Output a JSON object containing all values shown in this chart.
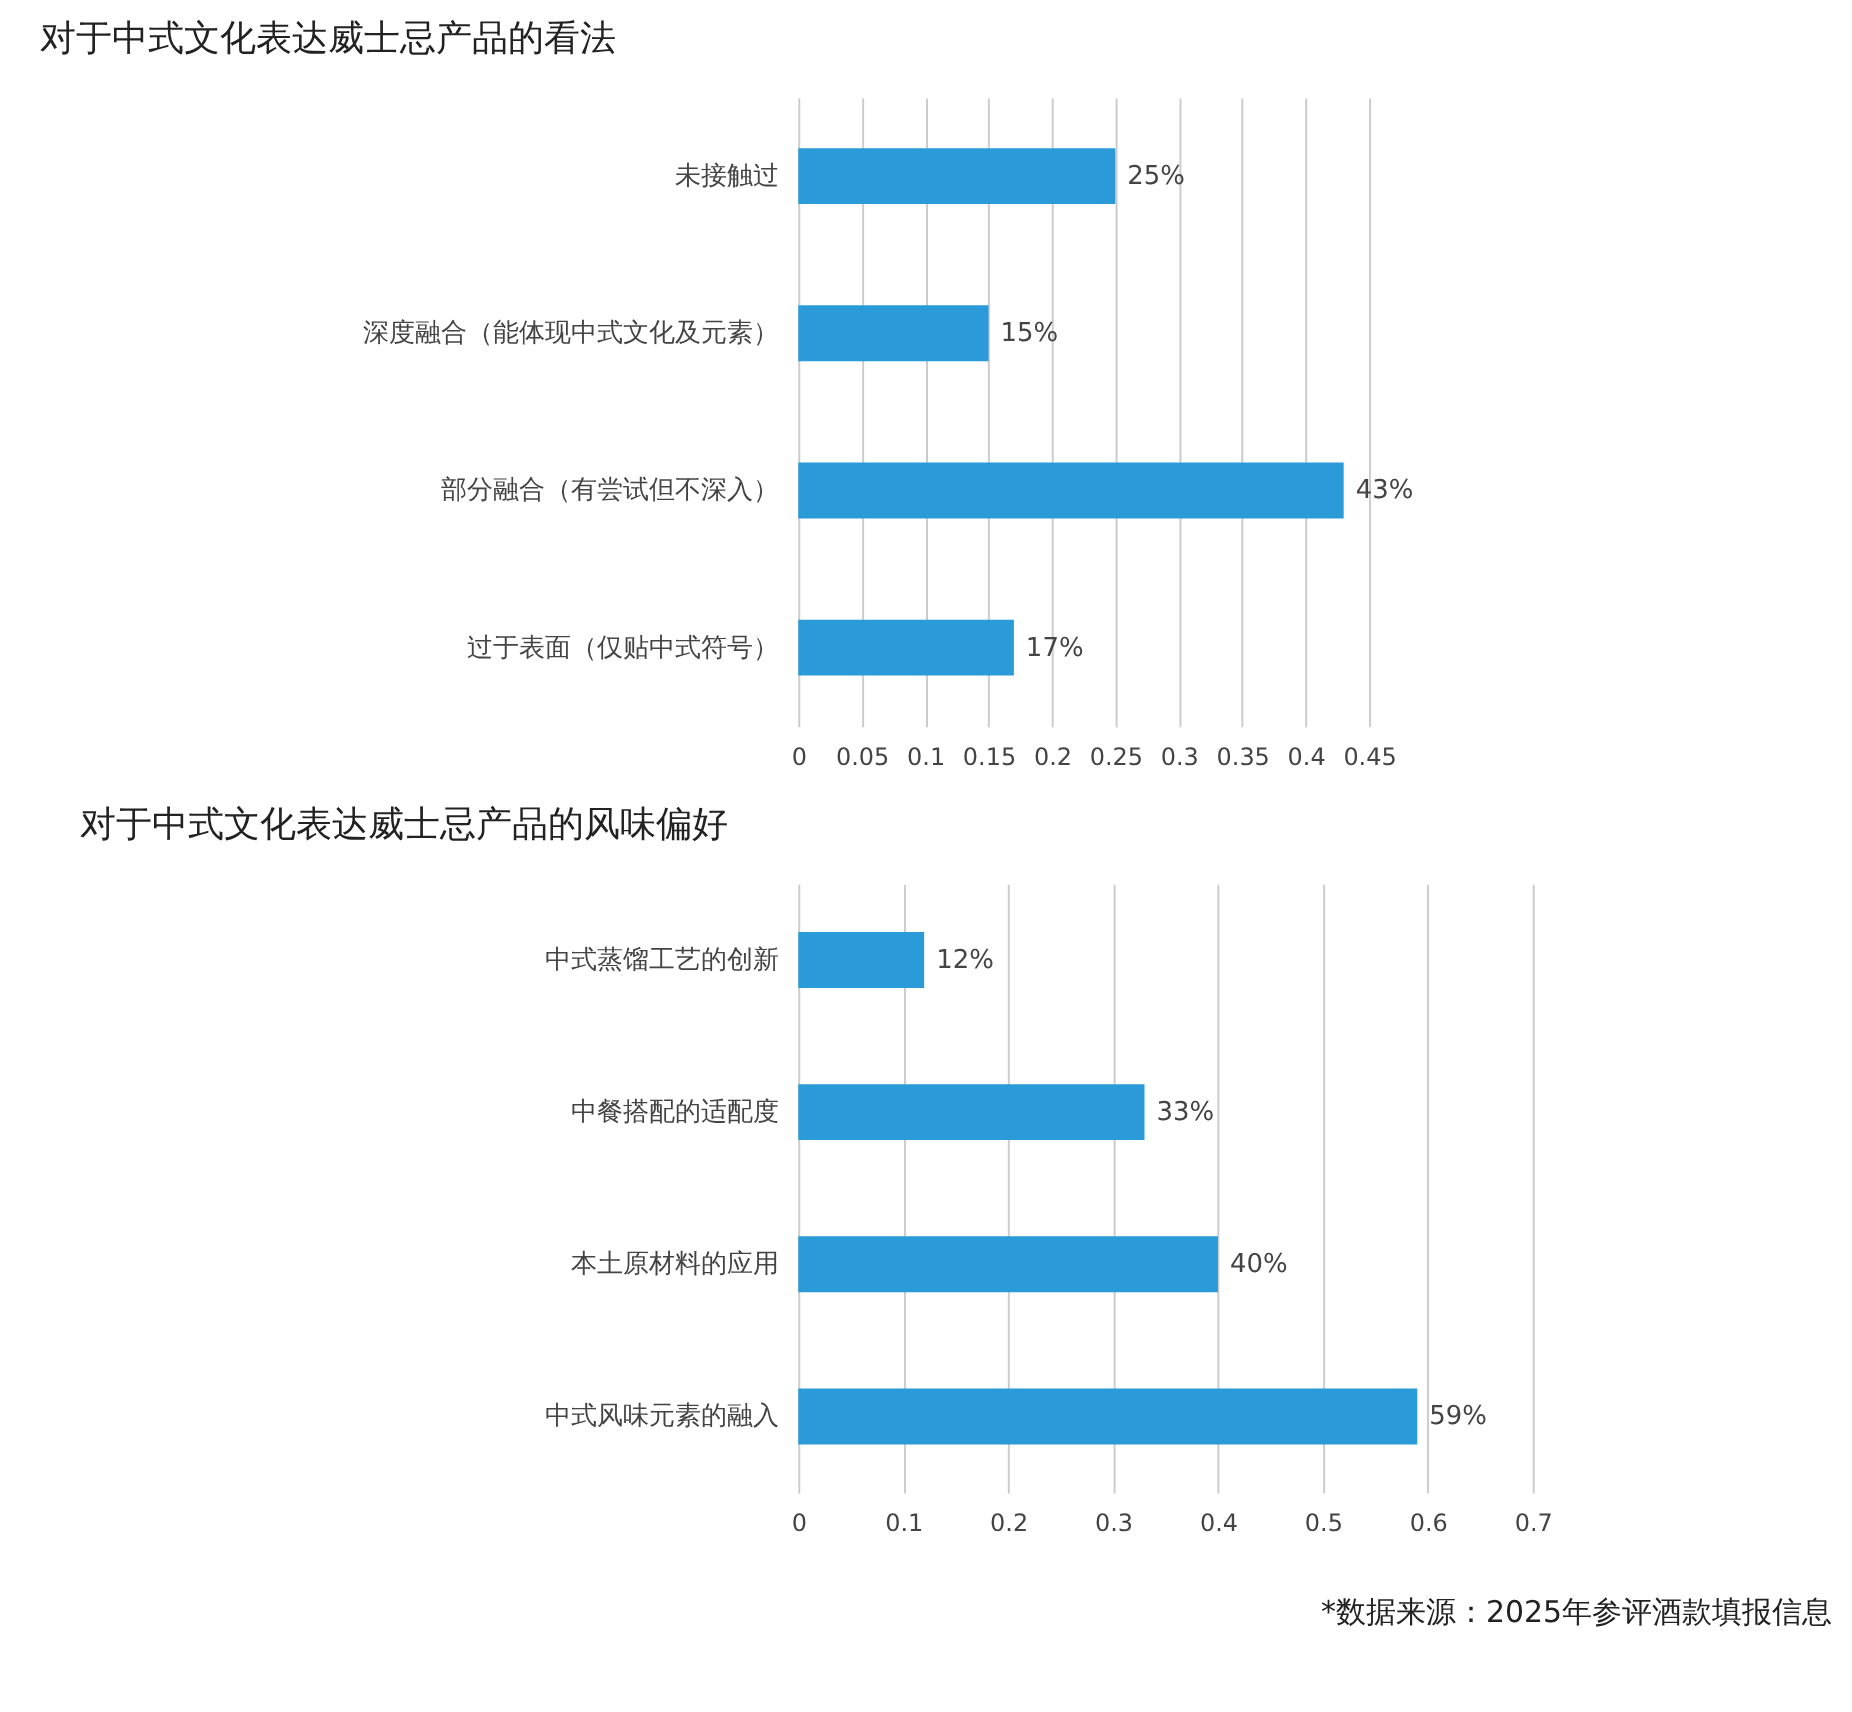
{
  "chart_data": [
    {
      "type": "bar",
      "orientation": "horizontal",
      "title": "对于中式文化表达威士忌产品的看法",
      "categories": [
        "未接触过",
        "深度融合（能体现中式文化及元素）",
        "部分融合（有尝试但不深入）",
        "过于表面（仅贴中式符号）"
      ],
      "values": [
        0.25,
        0.15,
        0.43,
        0.17
      ],
      "value_labels": [
        "25%",
        "15%",
        "43%",
        "17%"
      ],
      "color": "#2a9bd8",
      "xlim": [
        0,
        0.45
      ],
      "xticks": [
        0,
        0.05,
        0.1,
        0.15,
        0.2,
        0.25,
        0.3,
        0.35,
        0.4,
        0.45
      ],
      "grid": "x"
    },
    {
      "type": "bar",
      "orientation": "horizontal",
      "title": "对于中式文化表达威士忌产品的风味偏好",
      "categories": [
        "中式蒸馏工艺的创新",
        "中餐搭配的适配度",
        "本土原材料的应用",
        "中式风味元素的融入"
      ],
      "values": [
        0.12,
        0.33,
        0.4,
        0.59
      ],
      "value_labels": [
        "12%",
        "33%",
        "40%",
        "59%"
      ],
      "color": "#2a9bd8",
      "xlim": [
        0,
        0.7
      ],
      "xticks": [
        0,
        0.1,
        0.2,
        0.3,
        0.4,
        0.5,
        0.6,
        0.7
      ],
      "grid": "x",
      "annotations": [
        "*数据来源：2025年参评酒款填报信息"
      ]
    }
  ]
}
